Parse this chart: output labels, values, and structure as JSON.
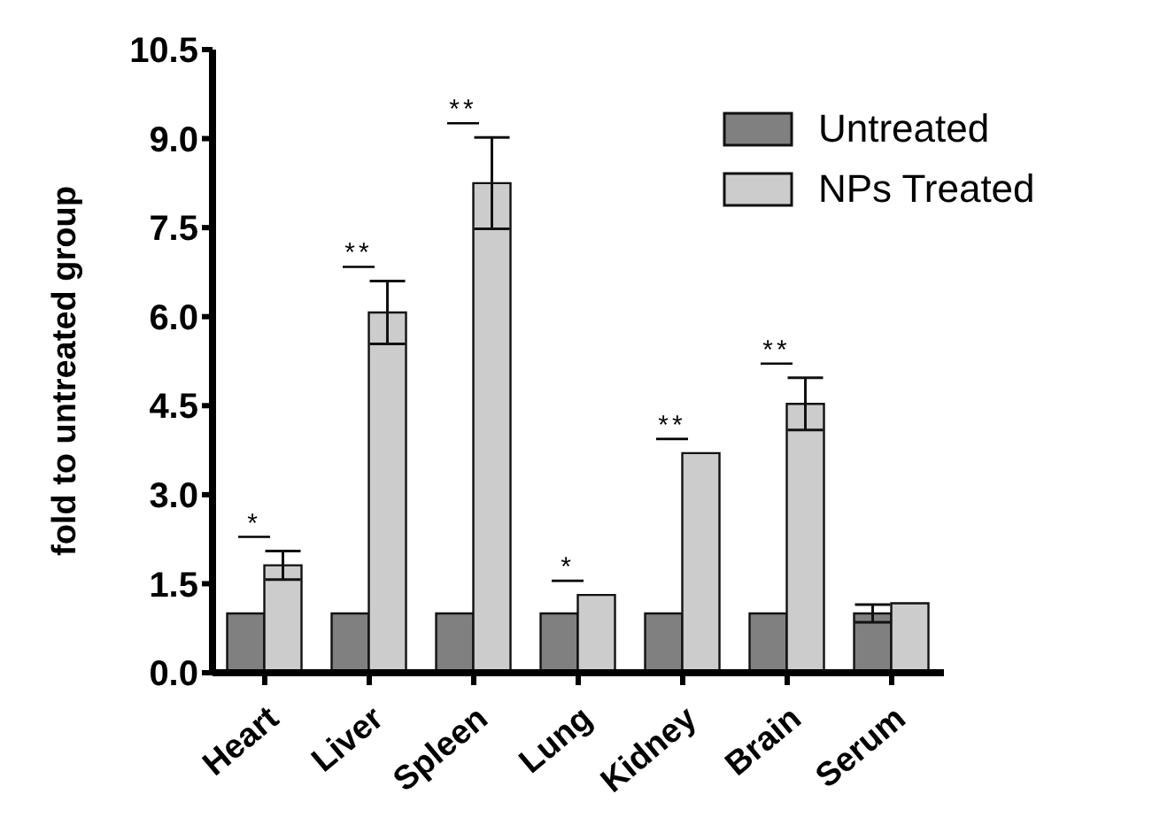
{
  "chart_data": {
    "type": "bar",
    "ylabel": "fold to untreated group",
    "categories": [
      "Heart",
      "Liver",
      "Spleen",
      "Lung",
      "Kidney",
      "Brain",
      "Serum"
    ],
    "series": [
      {
        "name": "Untreated",
        "color": "#808080",
        "values": [
          1,
          1,
          1,
          1,
          1,
          1,
          1
        ],
        "errors": [
          null,
          null,
          null,
          null,
          null,
          null,
          0.15
        ]
      },
      {
        "name": "NPs Treated",
        "color": "#cccccc",
        "values": [
          1.81,
          6.07,
          8.25,
          1.31,
          3.7,
          4.53,
          1.17
        ],
        "errors": [
          0.24,
          0.53,
          0.77,
          null,
          null,
          0.44,
          null
        ]
      }
    ],
    "ylim": [
      0,
      10.5
    ],
    "yticks": [
      {
        "value": 0,
        "label": "0.0"
      },
      {
        "value": 1.5,
        "label": "1.5"
      },
      {
        "value": 3,
        "label": "3.0"
      },
      {
        "value": 4.5,
        "label": "4.5"
      },
      {
        "value": 6,
        "label": "6.0"
      },
      {
        "value": 7.5,
        "label": "7.5"
      },
      {
        "value": 9,
        "label": "9.0"
      },
      {
        "value": 10.5,
        "label": "10.5"
      }
    ],
    "annotations": [
      "*",
      "**",
      "**",
      "*",
      "**",
      "**"
    ],
    "legend": "top right",
    "grid": false
  }
}
